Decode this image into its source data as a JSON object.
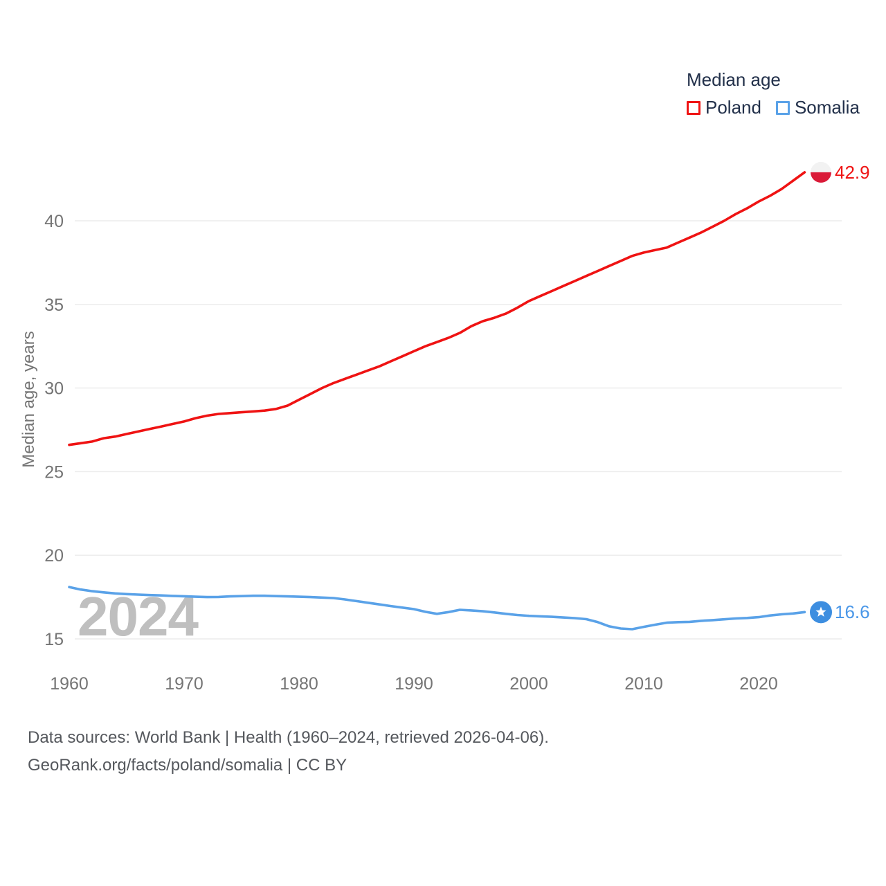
{
  "legend": {
    "title": "Median age",
    "items": [
      {
        "label": "Poland",
        "color": "#ef1313"
      },
      {
        "label": "Somalia",
        "color": "#5aa2e8"
      }
    ]
  },
  "watermark": "2024",
  "end_labels": {
    "poland": "42.9",
    "somalia": "16.6"
  },
  "footer": {
    "line1": "Data sources: World Bank | Health (1960–2024, retrieved 2026-04-06).",
    "line2": "GeoRank.org/facts/poland/somalia | CC BY"
  },
  "colors": {
    "poland_line": "#ef1313",
    "somalia_line": "#5aa2e8",
    "poland_flag_white": "#f2f2f2",
    "poland_flag_red": "#da1a38",
    "somalia_flag_blue": "#3d8ee0",
    "gridline": "#ebebeb",
    "tick_text": "#757575",
    "legend_text": "#22304a",
    "watermark_text": "#bfbfbf"
  },
  "chart_data": {
    "type": "line",
    "title": "Median age",
    "xlabel": "",
    "ylabel": "Median age, years",
    "grid": "horizontal",
    "legend_position": "top-right",
    "xlim": [
      1960,
      2024
    ],
    "ylim": [
      14,
      44
    ],
    "yticks": [
      15,
      20,
      25,
      30,
      35,
      40
    ],
    "xticks": [
      1960,
      1970,
      1980,
      1990,
      2000,
      2010,
      2020
    ],
    "x": [
      1960,
      1961,
      1962,
      1963,
      1964,
      1965,
      1966,
      1967,
      1968,
      1969,
      1970,
      1971,
      1972,
      1973,
      1974,
      1975,
      1976,
      1977,
      1978,
      1979,
      1980,
      1981,
      1982,
      1983,
      1984,
      1985,
      1986,
      1987,
      1988,
      1989,
      1990,
      1991,
      1992,
      1993,
      1994,
      1995,
      1996,
      1997,
      1998,
      1999,
      2000,
      2001,
      2002,
      2003,
      2004,
      2005,
      2006,
      2007,
      2008,
      2009,
      2010,
      2011,
      2012,
      2013,
      2014,
      2015,
      2016,
      2017,
      2018,
      2019,
      2020,
      2021,
      2022,
      2023,
      2024
    ],
    "series": [
      {
        "name": "Poland",
        "color": "#ef1313",
        "end_value_label": "42.9",
        "marker": "poland-flag",
        "values": [
          26.6,
          26.7,
          26.8,
          27.0,
          27.1,
          27.25,
          27.4,
          27.55,
          27.7,
          27.85,
          28.0,
          28.2,
          28.35,
          28.45,
          28.5,
          28.55,
          28.6,
          28.65,
          28.75,
          28.95,
          29.3,
          29.65,
          30.0,
          30.3,
          30.55,
          30.8,
          31.05,
          31.3,
          31.6,
          31.9,
          32.2,
          32.5,
          32.75,
          33.0,
          33.3,
          33.7,
          34.0,
          34.2,
          34.45,
          34.8,
          35.2,
          35.5,
          35.8,
          36.1,
          36.4,
          36.7,
          37.0,
          37.3,
          37.6,
          37.9,
          38.1,
          38.25,
          38.4,
          38.7,
          39.0,
          39.3,
          39.65,
          40.0,
          40.4,
          40.75,
          41.15,
          41.5,
          41.9,
          42.4,
          42.9
        ]
      },
      {
        "name": "Somalia",
        "color": "#5aa2e8",
        "end_value_label": "16.6",
        "marker": "somalia-flag",
        "values": [
          18.1,
          17.95,
          17.85,
          17.78,
          17.72,
          17.68,
          17.65,
          17.62,
          17.6,
          17.57,
          17.55,
          17.52,
          17.5,
          17.51,
          17.54,
          17.56,
          17.58,
          17.58,
          17.56,
          17.54,
          17.52,
          17.5,
          17.47,
          17.44,
          17.36,
          17.26,
          17.16,
          17.06,
          16.96,
          16.87,
          16.78,
          16.62,
          16.5,
          16.6,
          16.74,
          16.7,
          16.65,
          16.58,
          16.5,
          16.43,
          16.38,
          16.35,
          16.32,
          16.28,
          16.24,
          16.18,
          16.0,
          15.75,
          15.62,
          15.58,
          15.72,
          15.85,
          15.97,
          16.0,
          16.02,
          16.08,
          16.12,
          16.17,
          16.22,
          16.25,
          16.3,
          16.4,
          16.47,
          16.52,
          16.6
        ]
      }
    ]
  }
}
